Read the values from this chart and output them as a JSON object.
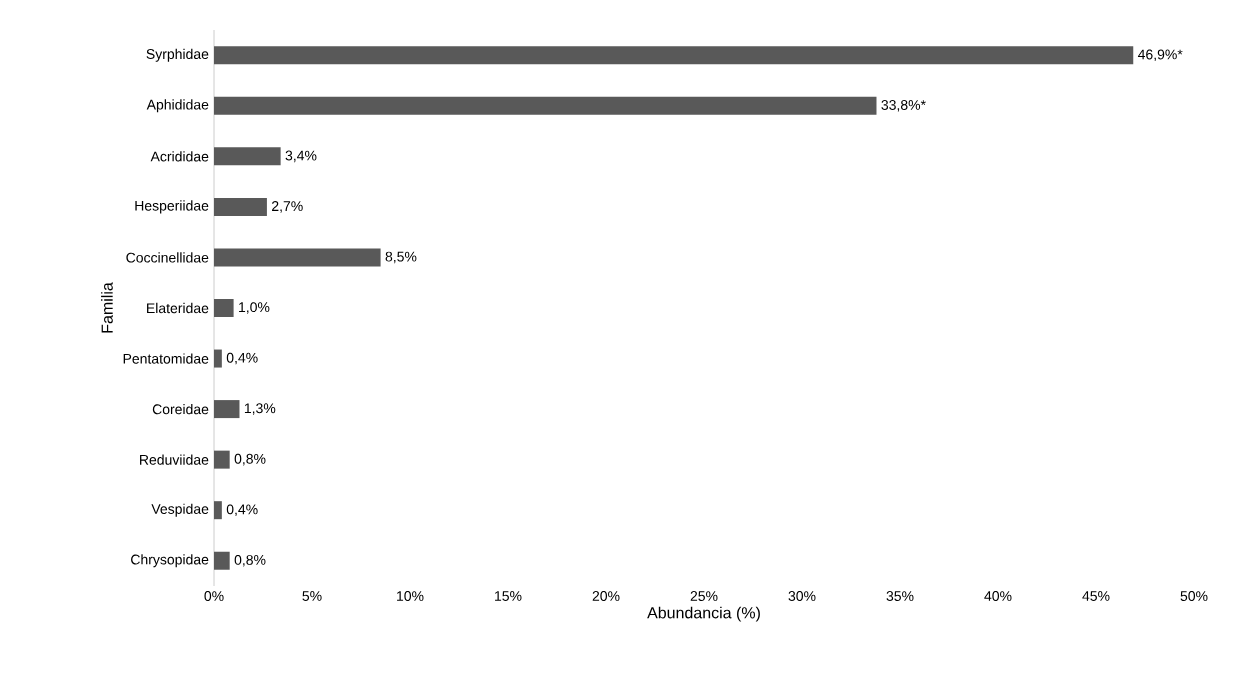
{
  "chart_data": {
    "type": "bar",
    "orientation": "horizontal",
    "xlabel": "Abundancia (%)",
    "ylabel": "Familia",
    "categories": [
      "Syrphidae",
      "Aphididae",
      "Acrididae",
      "Hesperiidae",
      "Coccinellidae",
      "Elateridae",
      "Pentatomidae",
      "Coreidae",
      "Reduviidae",
      "Vespidae",
      "Chrysopidae"
    ],
    "values": [
      46.9,
      33.8,
      3.4,
      2.7,
      8.5,
      1.0,
      0.4,
      1.3,
      0.8,
      0.4,
      0.8
    ],
    "value_labels": [
      "46,9%*",
      "33,8%*",
      "3,4%",
      "2,7%",
      "8,5%",
      "1,0%",
      "0,4%",
      "1,3%",
      "0,8%",
      "0,4%",
      "0,8%"
    ],
    "color": "#595959",
    "xlim": [
      0,
      50
    ],
    "xticks": [
      {
        "value": 0,
        "label": "0%"
      },
      {
        "value": 5,
        "label": "5%"
      },
      {
        "value": 10,
        "label": "10%"
      },
      {
        "value": 15,
        "label": "15%"
      },
      {
        "value": 20,
        "label": "20%"
      },
      {
        "value": 25,
        "label": "25%"
      },
      {
        "value": 30,
        "label": "30%"
      },
      {
        "value": 35,
        "label": "35%"
      },
      {
        "value": 40,
        "label": "40%"
      },
      {
        "value": 45,
        "label": "45%"
      },
      {
        "value": 50,
        "label": "50%"
      }
    ],
    "grid": false
  }
}
